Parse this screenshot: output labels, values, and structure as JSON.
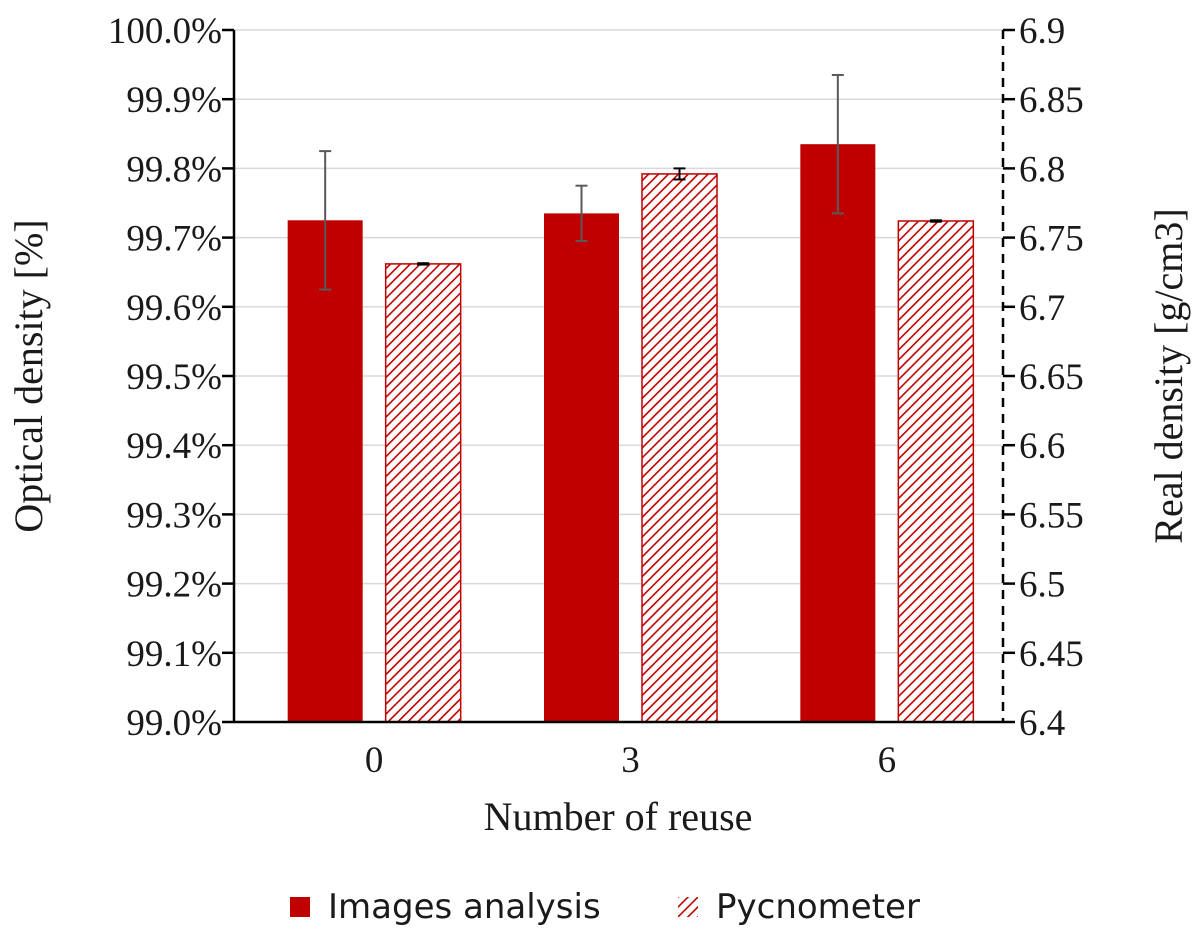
{
  "chart_data": {
    "type": "bar",
    "title": "",
    "xlabel": "Number of reuse",
    "ylabel": "Optical density [%]",
    "y2label": "Real density [g/cm3]",
    "categories": [
      "0",
      "3",
      "6"
    ],
    "ylim": [
      99.0,
      100.0
    ],
    "y2lim": [
      6.4,
      6.9
    ],
    "yticks": [
      "99.0%",
      "99.1%",
      "99.2%",
      "99.3%",
      "99.4%",
      "99.5%",
      "99.6%",
      "99.7%",
      "99.8%",
      "99.9%",
      "100.0%"
    ],
    "y2ticks": [
      "6.4",
      "6.45",
      "6.5",
      "6.55",
      "6.6",
      "6.65",
      "6.7",
      "6.75",
      "6.8",
      "6.85",
      "6.9"
    ],
    "grid": true,
    "legend_position": "bottom",
    "series": [
      {
        "name": "Images analysis",
        "axis": "left",
        "values": [
          99.725,
          99.735,
          99.835
        ],
        "errors": [
          0.1,
          0.04,
          0.1
        ],
        "color": "#c00000",
        "pattern": "solid"
      },
      {
        "name": "Pycnometer",
        "axis": "right",
        "values": [
          6.731,
          6.796,
          6.762
        ],
        "errors": [
          0.0005,
          0.004,
          0.0005
        ],
        "color": "#c00000",
        "pattern": "hatched"
      }
    ]
  }
}
